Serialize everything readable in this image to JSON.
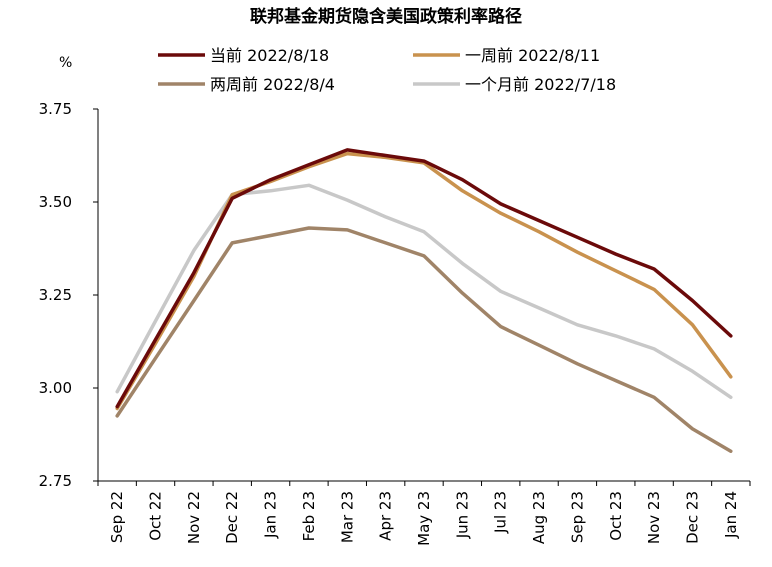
{
  "chart_data": {
    "type": "line",
    "title": "联邦基金期货隐含美国政策利率路径",
    "unit": "%",
    "categories": [
      "Sep 22",
      "Oct 22",
      "Nov 22",
      "Dec 22",
      "Jan 23",
      "Feb 23",
      "Mar 23",
      "Apr 23",
      "May 23",
      "Jun 23",
      "Jul 23",
      "Aug 23",
      "Sep 23",
      "Oct 23",
      "Nov 23",
      "Dec 23",
      "Jan 24"
    ],
    "yticks": [
      "2.75",
      "3.00",
      "3.25",
      "3.50",
      "3.75"
    ],
    "ylim": [
      2.75,
      3.75
    ],
    "grid": false,
    "legend_position": "top",
    "series": [
      {
        "name": "当前 2022/8/18",
        "color": "#6b0a0a",
        "values": [
          2.95,
          3.13,
          3.31,
          3.51,
          3.56,
          3.6,
          3.64,
          3.625,
          3.61,
          3.56,
          3.495,
          3.45,
          3.405,
          3.36,
          3.32,
          3.235,
          3.14
        ]
      },
      {
        "name": "一周前 2022/8/11",
        "color": "#c9924e",
        "values": [
          2.945,
          3.12,
          3.3,
          3.52,
          3.555,
          3.595,
          3.63,
          3.62,
          3.605,
          3.53,
          3.47,
          3.42,
          3.365,
          3.315,
          3.265,
          3.17,
          3.03
        ]
      },
      {
        "name": "两周前 2022/8/4",
        "color": "#a08468",
        "values": [
          2.925,
          3.08,
          3.235,
          3.39,
          3.41,
          3.43,
          3.425,
          3.39,
          3.355,
          3.255,
          3.165,
          3.115,
          3.065,
          3.02,
          2.975,
          2.89,
          2.83
        ]
      },
      {
        "name": "一个月前 2022/7/18",
        "color": "#c8c8c8",
        "values": [
          2.99,
          3.18,
          3.37,
          3.52,
          3.53,
          3.545,
          3.505,
          3.46,
          3.42,
          3.335,
          3.26,
          3.215,
          3.17,
          3.14,
          3.105,
          3.045,
          2.975
        ]
      }
    ]
  }
}
